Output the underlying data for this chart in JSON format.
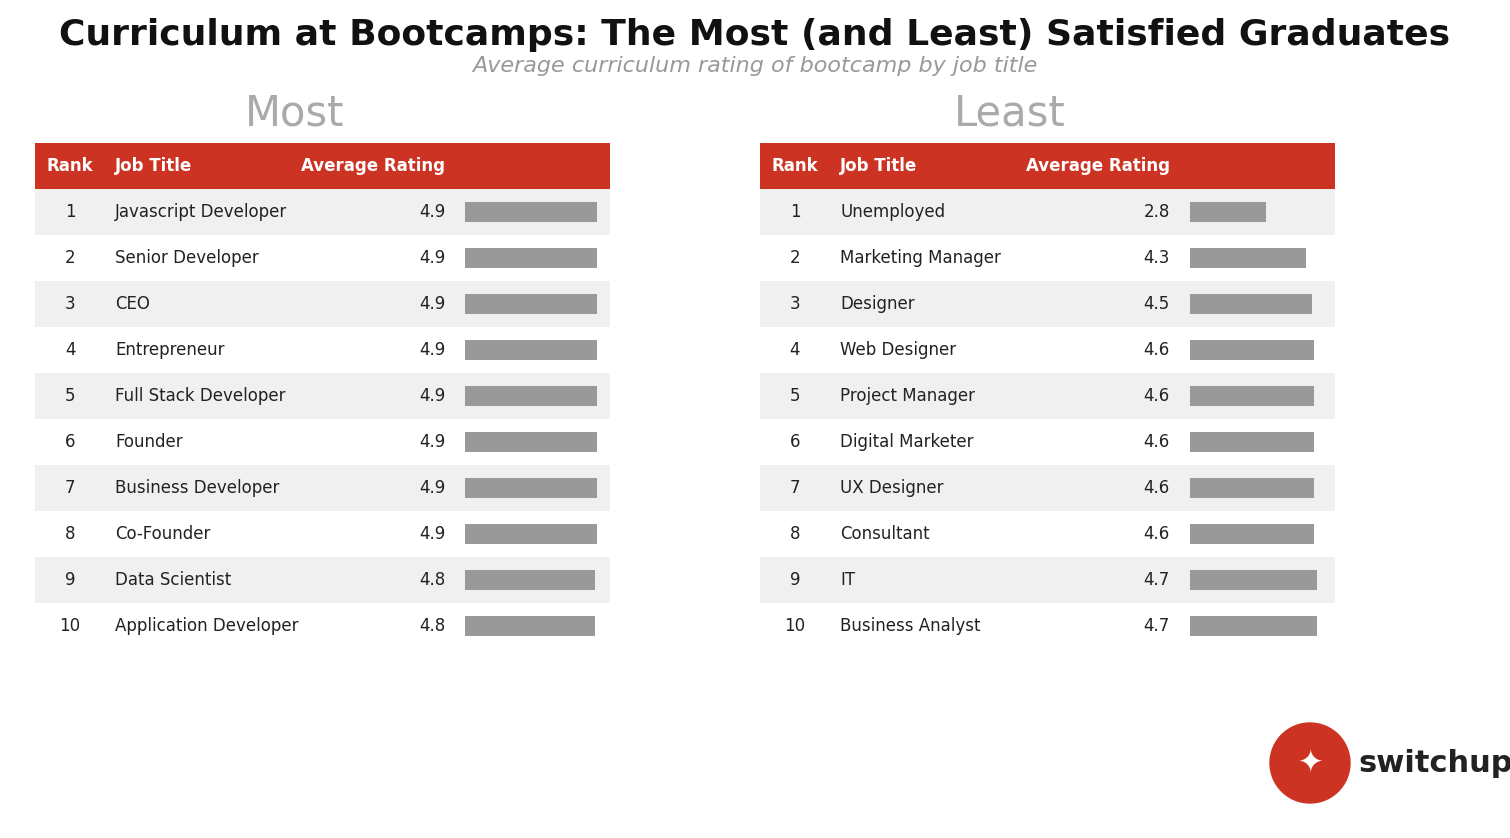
{
  "title": "Curriculum at Bootcamps: The Most (and Least) Satisfied Graduates",
  "subtitle": "Average curriculum rating of bootcamp by job title",
  "most_label": "Most",
  "least_label": "Least",
  "header_color": "#cc3322",
  "header_text_color": "#ffffff",
  "row_odd_color": "#f0f0f0",
  "row_even_color": "#ffffff",
  "bar_color": "#999999",
  "col_headers": [
    "Rank",
    "Job Title",
    "Average Rating"
  ],
  "most_data": [
    [
      1,
      "Javascript Developer",
      4.9
    ],
    [
      2,
      "Senior Developer",
      4.9
    ],
    [
      3,
      "CEO",
      4.9
    ],
    [
      4,
      "Entrepreneur",
      4.9
    ],
    [
      5,
      "Full Stack Developer",
      4.9
    ],
    [
      6,
      "Founder",
      4.9
    ],
    [
      7,
      "Business Developer",
      4.9
    ],
    [
      8,
      "Co-Founder",
      4.9
    ],
    [
      9,
      "Data Scientist",
      4.8
    ],
    [
      10,
      "Application Developer",
      4.8
    ]
  ],
  "least_data": [
    [
      1,
      "Unemployed",
      2.8
    ],
    [
      2,
      "Marketing Manager",
      4.3
    ],
    [
      3,
      "Designer",
      4.5
    ],
    [
      4,
      "Web Designer",
      4.6
    ],
    [
      5,
      "Project Manager",
      4.6
    ],
    [
      6,
      "Digital Marketer",
      4.6
    ],
    [
      7,
      "UX Designer",
      4.6
    ],
    [
      8,
      "Consultant",
      4.6
    ],
    [
      9,
      "IT",
      4.7
    ],
    [
      10,
      "Business Analyst",
      4.7
    ]
  ],
  "bar_max": 5.0,
  "background_color": "#ffffff",
  "title_fontsize": 26,
  "subtitle_fontsize": 16,
  "section_label_fontsize": 30,
  "header_fontsize": 12,
  "cell_fontsize": 12,
  "logo_color": "#cc3322",
  "logo_text": "switchup"
}
